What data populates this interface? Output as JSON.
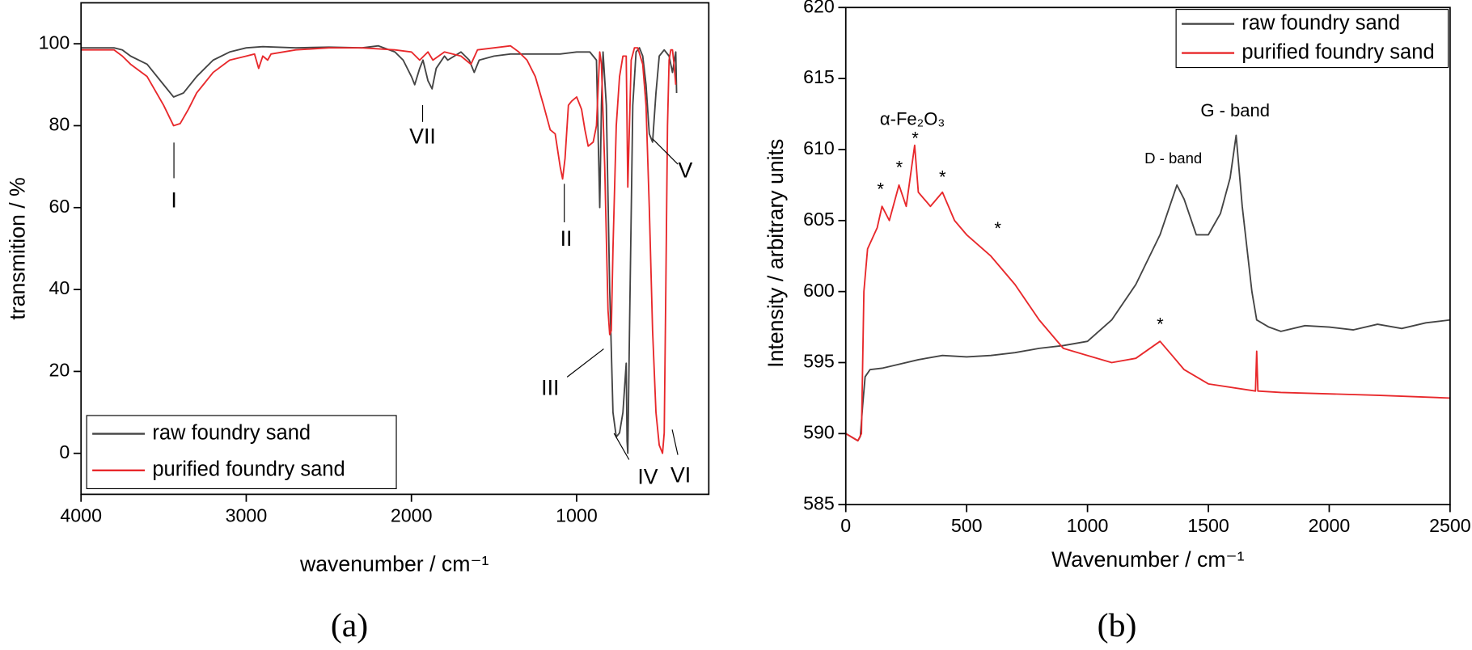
{
  "chart_data": [
    {
      "type": "line",
      "caption": "(a)",
      "x_label": "wavenumber / cm⁻¹",
      "y_label": "transmition / %",
      "xlim": [
        4000,
        200
      ],
      "ylim": [
        -10,
        110
      ],
      "xticks": [
        4000,
        3000,
        2000,
        1000
      ],
      "yticks": [
        0,
        20,
        40,
        60,
        80,
        100
      ],
      "legend": "lower left",
      "annotations": [
        "I",
        "II",
        "III",
        "IV",
        "V",
        "VI",
        "VII"
      ],
      "series": [
        {
          "name": "raw foundry sand",
          "color": "#444444",
          "x": [
            4000,
            3800,
            3750,
            3700,
            3600,
            3500,
            3440,
            3380,
            3300,
            3200,
            3100,
            3000,
            2900,
            2700,
            2500,
            2300,
            2200,
            2100,
            2050,
            2000,
            1980,
            1950,
            1930,
            1900,
            1875,
            1850,
            1800,
            1780,
            1700,
            1650,
            1620,
            1590,
            1500,
            1400,
            1200,
            1100,
            1000,
            920,
            880,
            860,
            850,
            840,
            820,
            800,
            780,
            760,
            740,
            720,
            700,
            695,
            690,
            680,
            660,
            640,
            620,
            600,
            580,
            560,
            540,
            520,
            500,
            470,
            440,
            420,
            400,
            395
          ],
          "values": [
            99,
            99,
            98.5,
            97,
            95,
            90,
            87,
            88,
            92,
            96,
            98,
            99,
            99.3,
            99,
            99.2,
            99,
            99.5,
            98,
            96,
            92,
            90,
            94,
            96,
            91,
            89,
            94,
            97,
            96,
            98,
            96,
            93,
            96,
            97,
            97.5,
            97.5,
            97.5,
            98,
            98,
            96,
            60,
            85,
            98,
            85,
            40,
            10,
            4,
            5,
            10,
            22,
            3,
            0,
            30,
            85,
            98,
            99,
            97,
            90,
            78,
            76,
            88,
            97,
            98.5,
            97,
            93,
            98,
            88
          ]
        },
        {
          "name": "purified foundry sand",
          "color": "#e8282b",
          "x": [
            4000,
            3800,
            3750,
            3700,
            3600,
            3500,
            3440,
            3400,
            3350,
            3300,
            3200,
            3100,
            3000,
            2950,
            2925,
            2900,
            2870,
            2850,
            2700,
            2500,
            2300,
            2100,
            2000,
            1950,
            1900,
            1870,
            1800,
            1700,
            1640,
            1600,
            1500,
            1400,
            1350,
            1300,
            1250,
            1200,
            1160,
            1130,
            1100,
            1085,
            1070,
            1050,
            1030,
            1000,
            970,
            950,
            930,
            900,
            880,
            860,
            850,
            830,
            810,
            800,
            790,
            780,
            760,
            740,
            720,
            700,
            690,
            670,
            650,
            630,
            600,
            580,
            560,
            540,
            520,
            500,
            480,
            470,
            460,
            450,
            440,
            430,
            420,
            410,
            400
          ],
          "values": [
            98.5,
            98.5,
            97,
            95,
            92,
            85,
            80,
            80.5,
            84,
            88,
            93,
            96,
            97,
            97.5,
            94,
            97,
            96,
            97.5,
            98.5,
            99,
            99,
            98.5,
            98,
            96,
            98,
            96,
            98,
            97,
            95,
            98.5,
            99,
            99.5,
            98,
            96,
            92,
            85,
            79,
            78,
            70,
            67,
            72,
            85,
            86,
            87,
            84,
            79,
            75,
            76,
            80,
            98,
            95,
            70,
            35,
            29,
            30,
            50,
            80,
            92,
            97,
            97,
            65,
            96,
            99,
            99,
            95,
            85,
            60,
            30,
            10,
            2,
            0,
            5,
            40,
            80,
            96,
            98.5,
            98.5,
            95,
            90
          ]
        }
      ]
    },
    {
      "type": "line",
      "caption": "(b)",
      "x_label": "Wavenumber / cm⁻¹",
      "y_label": "Intensity / arbitrary units",
      "xlim": [
        0,
        2500
      ],
      "ylim": [
        585,
        620
      ],
      "xticks": [
        0,
        500,
        1000,
        1500,
        2000,
        2500
      ],
      "yticks": [
        585,
        590,
        595,
        600,
        605,
        610,
        615,
        620
      ],
      "legend": "upper right",
      "annotations": [
        "α-Fe₂O₃",
        "D - band",
        "G - band",
        "*",
        "*",
        "*",
        "*",
        "*",
        "*"
      ],
      "series": [
        {
          "name": "raw foundry sand",
          "color": "#444444",
          "x": [
            0,
            50,
            60,
            70,
            80,
            100,
            150,
            200,
            300,
            400,
            500,
            600,
            700,
            800,
            900,
            1000,
            1100,
            1200,
            1300,
            1370,
            1400,
            1450,
            1500,
            1550,
            1590,
            1615,
            1640,
            1680,
            1700,
            1750,
            1800,
            1900,
            2000,
            2100,
            2200,
            2300,
            2400,
            2500
          ],
          "values": [
            590,
            589.5,
            589.8,
            592,
            594,
            594.5,
            594.6,
            594.8,
            595.2,
            595.5,
            595.4,
            595.5,
            595.7,
            596,
            596.2,
            596.5,
            598,
            600.5,
            604,
            607.5,
            606.5,
            604,
            604,
            605.5,
            608,
            611,
            606,
            600,
            598,
            597.5,
            597.2,
            597.6,
            597.5,
            597.3,
            597.7,
            597.4,
            597.8,
            598
          ]
        },
        {
          "name": "purified foundry sand",
          "color": "#e8282b",
          "x": [
            0,
            50,
            65,
            75,
            90,
            130,
            150,
            180,
            220,
            250,
            285,
            300,
            350,
            400,
            450,
            500,
            600,
            700,
            800,
            900,
            1000,
            1100,
            1200,
            1300,
            1350,
            1400,
            1500,
            1695,
            1700,
            1705,
            1800,
            2000,
            2200,
            2500
          ],
          "values": [
            590,
            589.5,
            590,
            600,
            603,
            604.5,
            606,
            605,
            607.5,
            606,
            610.3,
            607,
            606,
            607,
            605,
            604,
            602.5,
            600.5,
            598,
            596,
            595.5,
            595,
            595.3,
            596.5,
            595.5,
            594.5,
            593.5,
            593,
            595.8,
            593,
            592.9,
            592.8,
            592.7,
            592.5
          ]
        }
      ]
    }
  ]
}
